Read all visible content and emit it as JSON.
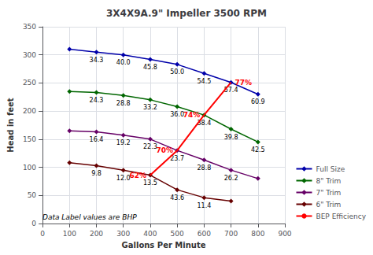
{
  "chart_data": {
    "type": "line",
    "title": "3X4X9A.9\" Impeller 3500 RPM",
    "xlabel": "Gallons Per Minute",
    "ylabel": "Head in feet",
    "xlim": [
      0,
      900
    ],
    "ylim": [
      0,
      350
    ],
    "xticks": [
      0,
      100,
      200,
      300,
      400,
      500,
      600,
      700,
      800,
      900
    ],
    "yticks": [
      0,
      50,
      100,
      150,
      200,
      250,
      300,
      350
    ],
    "grid": true,
    "legend": "lower right",
    "annotation": "Data Label values are BHP",
    "series": [
      {
        "name": "Full Size",
        "color": "#0000AA",
        "marker": "diamond",
        "x": [
          100,
          200,
          300,
          400,
          500,
          600,
          700,
          800
        ],
        "values": [
          310,
          305,
          300,
          292,
          283,
          267,
          251,
          230
        ],
        "bhp_x": [
          200,
          300,
          400,
          500,
          600,
          700,
          800
        ],
        "bhp": [
          34.3,
          40.0,
          45.8,
          50.0,
          54.5,
          57.4,
          60.9
        ],
        "bhp_labels": [
          "34.3",
          "40.0",
          "45.8",
          "50.0",
          "54.5",
          "57.4",
          "60.9"
        ]
      },
      {
        "name": "8\" Trim",
        "color": "#006600",
        "marker": "diamond",
        "x": [
          100,
          200,
          300,
          400,
          500,
          600,
          700,
          800
        ],
        "values": [
          235,
          233,
          228,
          220,
          208,
          193,
          168,
          145
        ],
        "bhp_x": [
          200,
          300,
          400,
          500,
          600,
          700,
          800
        ],
        "bhp": [
          24.3,
          28.8,
          33.2,
          36.0,
          38.4,
          39.8,
          42.5
        ],
        "bhp_labels": [
          "24.3",
          "28.8",
          "33.2",
          "36.0",
          "38.4",
          "39.8",
          "42.5"
        ]
      },
      {
        "name": "7\" Trim",
        "color": "#660066",
        "marker": "diamond",
        "x": [
          100,
          200,
          300,
          400,
          500,
          600,
          700,
          800
        ],
        "values": [
          165,
          163,
          157,
          150,
          130,
          113,
          95,
          80
        ],
        "bhp_x": [
          200,
          300,
          400,
          500,
          600,
          700
        ],
        "bhp": [
          16.4,
          19.2,
          22.3,
          23.7,
          28.8,
          26.2
        ],
        "bhp_labels": [
          "16.4",
          "19.2",
          "22.3",
          "23.7",
          "28.8",
          "26.2"
        ]
      },
      {
        "name": "6\" Trim",
        "color": "#660000",
        "marker": "diamond",
        "x": [
          100,
          200,
          300,
          400,
          500,
          600,
          700
        ],
        "values": [
          108,
          103,
          95,
          86,
          60,
          46,
          40
        ],
        "bhp_x": [
          200,
          300,
          400,
          500,
          600
        ],
        "bhp": [
          9.8,
          12.0,
          13.5,
          43.6,
          11.4
        ],
        "bhp_labels": [
          "9.8",
          "12.0",
          "13.5",
          "43.6",
          "11.4"
        ]
      },
      {
        "name": "BEP Efficiency",
        "color": "#FF0000",
        "marker": "none",
        "x": [
          400,
          500,
          600,
          700
        ],
        "values": [
          86,
          130,
          193,
          251
        ],
        "efficiency": [
          62,
          70,
          74,
          77
        ],
        "efficiency_labels": [
          "62%",
          "70%",
          "74%",
          "77%"
        ]
      }
    ]
  }
}
